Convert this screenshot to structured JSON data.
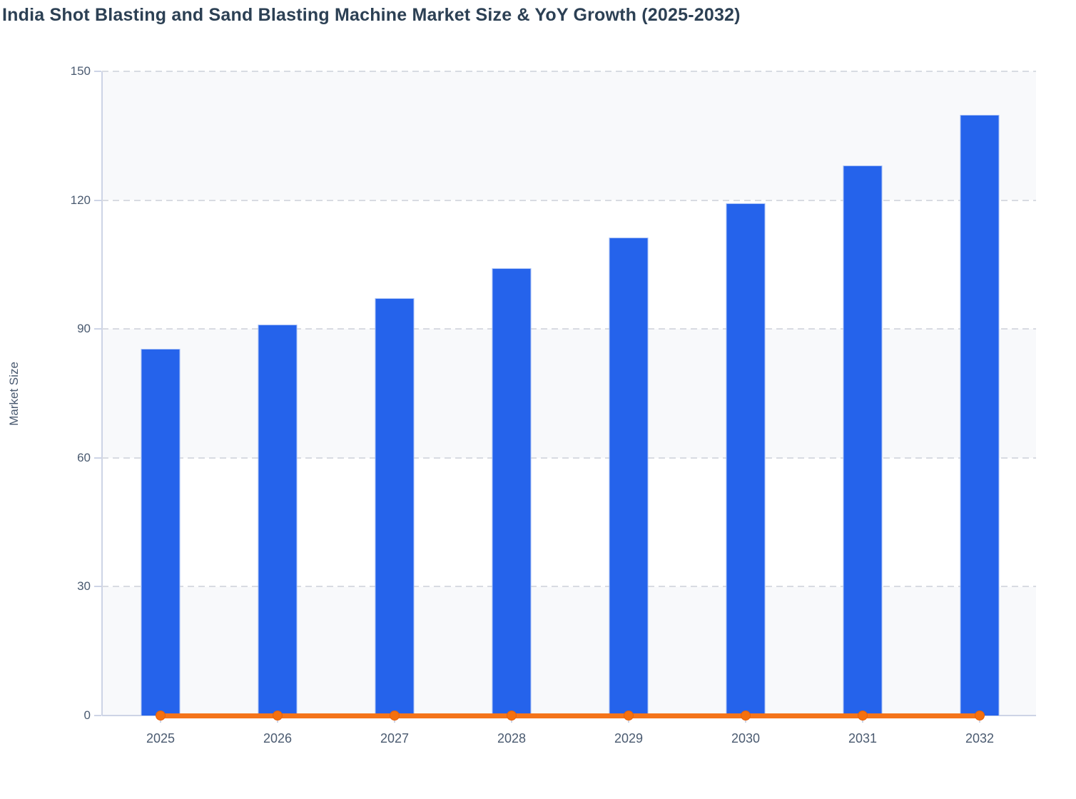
{
  "title": "India Shot Blasting and Sand Blasting Machine Market Size & YoY Growth (2025-2032)",
  "colors": {
    "background": "#ffffff",
    "title_text": "#2c4054",
    "axis_text": "#4a5a70",
    "axis_line": "#cdd4e6",
    "grid_line": "#d8dbe2",
    "band_fill": "#f8f9fb",
    "bar_fill": "#2563eb",
    "bar_stroke": "#a3bdf5",
    "line": "#f4741a",
    "marker_fill": "#f4700f",
    "marker_stroke": "#e5610b"
  },
  "chart_data": {
    "type": "bar",
    "subtype": "bar-and-line combo",
    "title": "India Shot Blasting and Sand Blasting Machine Market Size & YoY Growth (2025-2032)",
    "xlabel": "",
    "ylabel": "Market Size",
    "categories": [
      "2025",
      "2026",
      "2027",
      "2028",
      "2029",
      "2030",
      "2031",
      "2032"
    ],
    "series": [
      {
        "name": "Market Size",
        "type": "bar",
        "values": [
          85.4,
          91.0,
          97.2,
          104.2,
          111.3,
          119.2,
          128.1,
          139.9
        ]
      },
      {
        "name": "YoY Growth",
        "type": "line",
        "values": [
          0,
          0,
          0,
          0,
          0,
          0,
          0,
          0
        ],
        "note": "rendered as a flat orange line with circular markers sitting on the zero baseline"
      }
    ],
    "ylim": [
      0,
      150
    ],
    "yticks": [
      0,
      30,
      60,
      90,
      120,
      150
    ],
    "grid": "dashed horizontal gridlines over alternating light-gray/white horizontal bands",
    "legend": "none"
  }
}
